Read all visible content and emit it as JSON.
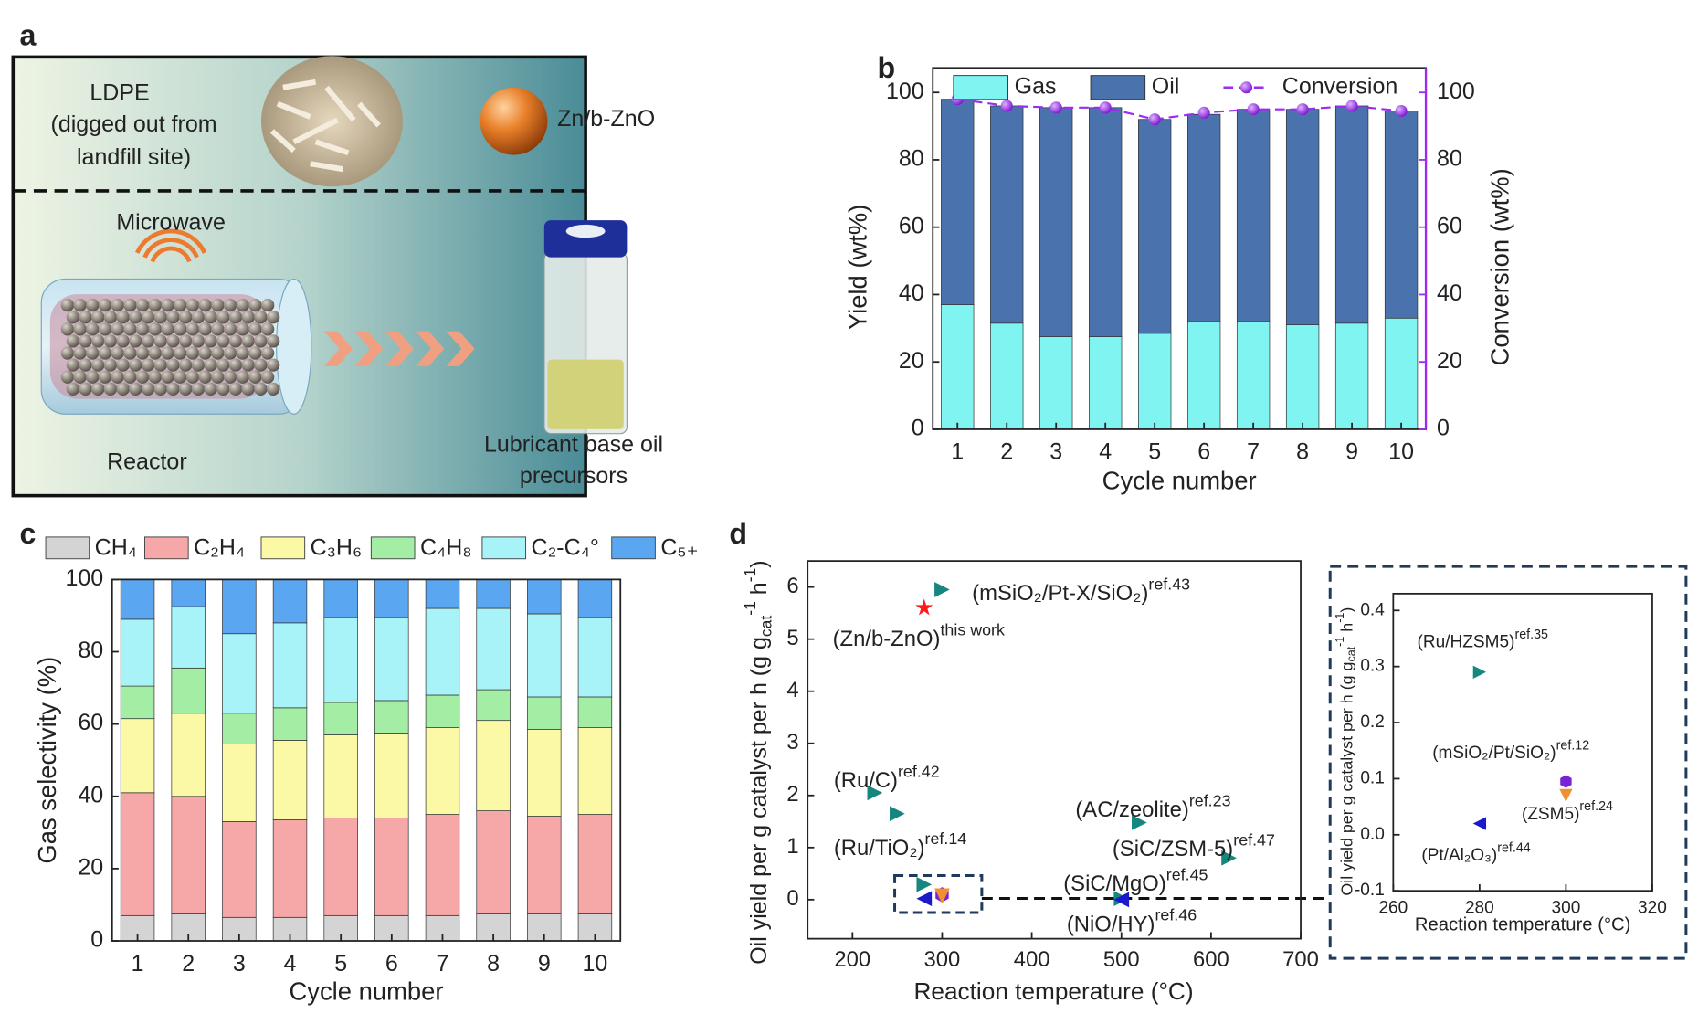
{
  "panel_labels": [
    "a",
    "b",
    "c",
    "d"
  ],
  "diagram": {
    "ldpe": [
      "LDPE",
      "(digged out from",
      "landfill site)"
    ],
    "catalyst": "Zn/b-ZnO",
    "microwave": "Microwave",
    "reactor": "Reactor",
    "product": [
      "Lubricant base oil",
      "precursors"
    ]
  },
  "chart_data": [
    {
      "type": "bar",
      "stacked": true,
      "x_label": "Cycle number",
      "y_label": "Yield (wt%)",
      "y2_label": "Conversion (wt%)",
      "categories": [
        "1",
        "2",
        "3",
        "4",
        "5",
        "6",
        "7",
        "8",
        "9",
        "10"
      ],
      "series": [
        {
          "name": "Gas",
          "color": "#80f4f0",
          "values": [
            37,
            31.5,
            27.5,
            27.5,
            28.5,
            32,
            32,
            31,
            31.5,
            33
          ]
        },
        {
          "name": "Oil",
          "color": "#4a72ac",
          "values": [
            61,
            64.5,
            68,
            68,
            63.5,
            61.5,
            63,
            64,
            64.5,
            61.5
          ]
        },
        {
          "name": "Conversion",
          "color": "#9a2cf0",
          "type": "line",
          "axis": "y2",
          "values": [
            98,
            96,
            95.5,
            95.5,
            92,
            94,
            95,
            95,
            96,
            94.5
          ]
        }
      ],
      "ylim": [
        0,
        107.3
      ],
      "yticks": [
        0,
        20,
        40,
        60,
        80,
        100
      ],
      "y2lim": [
        0,
        107.3
      ],
      "y2ticks": [
        0,
        20,
        40,
        60,
        80,
        100
      ]
    },
    {
      "type": "bar",
      "stacked": true,
      "x_label": "Cycle number",
      "y_label": "Gas selectivity (%)",
      "categories": [
        "1",
        "2",
        "3",
        "4",
        "5",
        "6",
        "7",
        "8",
        "9",
        "10"
      ],
      "series": [
        {
          "name": "CH₄",
          "color": "#d4d4d4",
          "values": [
            7,
            7.5,
            6.5,
            6.5,
            7,
            7,
            7,
            7.5,
            7.5,
            7.5
          ]
        },
        {
          "name": "C₂H₄",
          "color": "#f6a7a7",
          "values": [
            34,
            32.5,
            26.5,
            27,
            27,
            27,
            28,
            28.5,
            27,
            27.5
          ]
        },
        {
          "name": "C₃H₆",
          "color": "#fbf8a6",
          "values": [
            20.5,
            23,
            21.5,
            22,
            23,
            23.5,
            24,
            25,
            24,
            24
          ]
        },
        {
          "name": "C₄H₈",
          "color": "#a4eda4",
          "values": [
            9,
            12.5,
            8.5,
            9,
            9,
            9,
            9,
            8.5,
            9,
            8.5
          ]
        },
        {
          "name": "C₂-C₄°",
          "color": "#a8f3f7",
          "values": [
            18.5,
            17,
            22,
            23.5,
            23.5,
            23,
            24,
            22.5,
            23,
            22
          ]
        },
        {
          "name": "C₅₊",
          "color": "#5aa6f0",
          "values": [
            11,
            7.5,
            15,
            12,
            10.5,
            10.5,
            8,
            8,
            9.5,
            10.5
          ]
        }
      ],
      "ylim": [
        0,
        100
      ],
      "yticks": [
        0,
        20,
        40,
        60,
        80,
        100
      ]
    },
    {
      "type": "scatter",
      "x_label": "Reaction temperature (°C)",
      "y_label": [
        "Oil yield per g catalyst per h (g g",
        "cat",
        "-1",
        " h",
        "-1",
        ")"
      ],
      "xlim": [
        150,
        700
      ],
      "xticks": [
        200,
        300,
        400,
        500,
        600,
        700
      ],
      "ylim": [
        -0.75,
        6.5
      ],
      "yticks": [
        0,
        1,
        2,
        3,
        4,
        5,
        6
      ],
      "points": [
        {
          "name": "(Zn/b-ZnO)",
          "ref": "this work",
          "x": 280,
          "y": 5.6,
          "marker": "star",
          "color": "#ff1a1a"
        },
        {
          "name": "(mSiO₂/Pt-X/SiO₂)",
          "ref": "ref.43",
          "x": 300,
          "y": 5.95,
          "marker": "right",
          "color": "#16877f"
        },
        {
          "name": "(Ru/C)",
          "ref": "ref.42",
          "x": 225,
          "y": 2.05,
          "marker": "right",
          "color": "#16877f"
        },
        {
          "name": "(Ru/TiO₂)",
          "ref": "ref.14",
          "x": 250,
          "y": 1.65,
          "marker": "right",
          "color": "#16877f"
        },
        {
          "name": "(AC/zeolite)",
          "ref": "ref.23",
          "x": 520,
          "y": 1.48,
          "marker": "right",
          "color": "#16877f"
        },
        {
          "name": "(SiC/ZSM-5)",
          "ref": "ref.47",
          "x": 620,
          "y": 0.8,
          "marker": "right",
          "color": "#16877f"
        },
        {
          "name": "(SiC/MgO)",
          "ref": "ref.45",
          "x": 500,
          "y": 0.02,
          "marker": "right",
          "color": "#16877f"
        },
        {
          "name": "(NiO/HY)",
          "ref": "ref.46",
          "x": 500,
          "y": 0,
          "marker": "left",
          "color": "#1a1acc"
        },
        {
          "x": 280,
          "y": 0.29,
          "marker": "right",
          "color": "#16877f"
        },
        {
          "x": 280,
          "y": 0.02,
          "marker": "left",
          "color": "#1a1acc"
        },
        {
          "x": 300,
          "y": 0.095,
          "marker": "hexagon",
          "color": "#7a22d6"
        },
        {
          "x": 300,
          "y": 0.07,
          "marker": "down",
          "color": "#f09030"
        }
      ],
      "inset": {
        "x_label": "Reaction temperature (°C)",
        "y_label": [
          "Oil yield per g catalyst per h (g g",
          "cat",
          "-1",
          " h",
          "-1",
          ")"
        ],
        "xlim": [
          260,
          320
        ],
        "xticks": [
          260,
          280,
          300,
          320
        ],
        "ylim": [
          -0.1,
          0.43
        ],
        "yticks": [
          -0.1,
          {
            "value": 0,
            "label": "0.0"
          },
          0.1,
          0.2,
          0.3,
          0.4
        ],
        "points": [
          {
            "name": "(Ru/HZSM5)",
            "ref": "ref.35",
            "x": 280,
            "y": 0.29,
            "marker": "right",
            "color": "#16877f"
          },
          {
            "name": "(mSiO₂/Pt/SiO₂)",
            "ref": "ref.12",
            "x": 300,
            "y": 0.095,
            "marker": "hexagon",
            "color": "#7a22d6"
          },
          {
            "name": "(ZSM5)",
            "ref": "ref.24",
            "x": 300,
            "y": 0.07,
            "marker": "down",
            "color": "#f09030"
          },
          {
            "name": "(Pt/Al₂O₃)",
            "ref": "ref.44",
            "x": 280,
            "y": 0.02,
            "marker": "left",
            "color": "#1a1acc"
          }
        ]
      }
    }
  ]
}
